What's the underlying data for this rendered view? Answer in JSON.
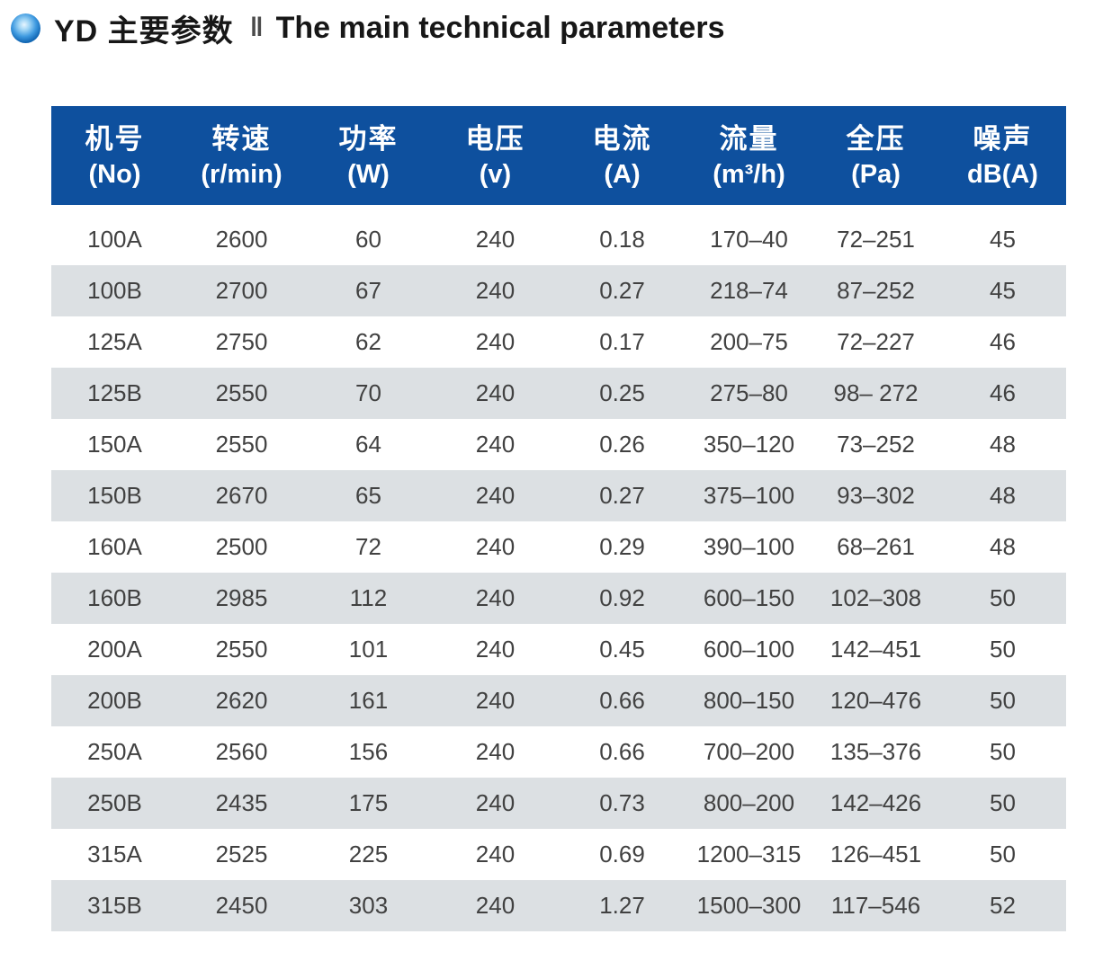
{
  "page": {
    "title_zh": "YD 主要参数",
    "title_separator": "‖",
    "title_en": "The main technical parameters",
    "colors": {
      "header_bg": "#0e509e",
      "stripe_bg": "#dce0e3",
      "header_text": "#ffffff",
      "body_text": "#414141",
      "title_text": "#171717",
      "bullet_blue": "#1166b3"
    }
  },
  "table": {
    "columns": [
      {
        "key": "no",
        "name_zh": "机号",
        "unit": "(No)"
      },
      {
        "key": "speed",
        "name_zh": "转速",
        "unit": "(r/min)"
      },
      {
        "key": "power",
        "name_zh": "功率",
        "unit": "(W)"
      },
      {
        "key": "voltage",
        "name_zh": "电压",
        "unit": "(v)"
      },
      {
        "key": "current",
        "name_zh": "电流",
        "unit": "(A)"
      },
      {
        "key": "flow",
        "name_zh": "流量",
        "unit": "(m³/h)"
      },
      {
        "key": "pressure",
        "name_zh": "全压",
        "unit": "(Pa)"
      },
      {
        "key": "noise",
        "name_zh": "噪声",
        "unit": "dB(A)"
      }
    ],
    "rows": [
      [
        "100A",
        "2600",
        "60",
        "240",
        "0.18",
        "170–40",
        "72–251",
        "45"
      ],
      [
        "100B",
        "2700",
        "67",
        "240",
        "0.27",
        "218–74",
        "87–252",
        "45"
      ],
      [
        "125A",
        "2750",
        "62",
        "240",
        "0.17",
        "200–75",
        "72–227",
        "46"
      ],
      [
        "125B",
        "2550",
        "70",
        "240",
        "0.25",
        "275–80",
        "98– 272",
        "46"
      ],
      [
        "150A",
        "2550",
        "64",
        "240",
        "0.26",
        "350–120",
        "73–252",
        "48"
      ],
      [
        "150B",
        "2670",
        "65",
        "240",
        "0.27",
        "375–100",
        "93–302",
        "48"
      ],
      [
        "160A",
        "2500",
        "72",
        "240",
        "0.29",
        "390–100",
        "68–261",
        "48"
      ],
      [
        "160B",
        "2985",
        "112",
        "240",
        "0.92",
        "600–150",
        "102–308",
        "50"
      ],
      [
        "200A",
        "2550",
        "101",
        "240",
        "0.45",
        "600–100",
        "142–451",
        "50"
      ],
      [
        "200B",
        "2620",
        "161",
        "240",
        "0.66",
        "800–150",
        "120–476",
        "50"
      ],
      [
        "250A",
        "2560",
        "156",
        "240",
        "0.66",
        "700–200",
        "135–376",
        "50"
      ],
      [
        "250B",
        "2435",
        "175",
        "240",
        "0.73",
        "800–200",
        "142–426",
        "50"
      ],
      [
        "315A",
        "2525",
        "225",
        "240",
        "0.69",
        "1200–315",
        "126–451",
        "50"
      ],
      [
        "315B",
        "2450",
        "303",
        "240",
        "1.27",
        "1500–300",
        "117–546",
        "52"
      ]
    ]
  }
}
